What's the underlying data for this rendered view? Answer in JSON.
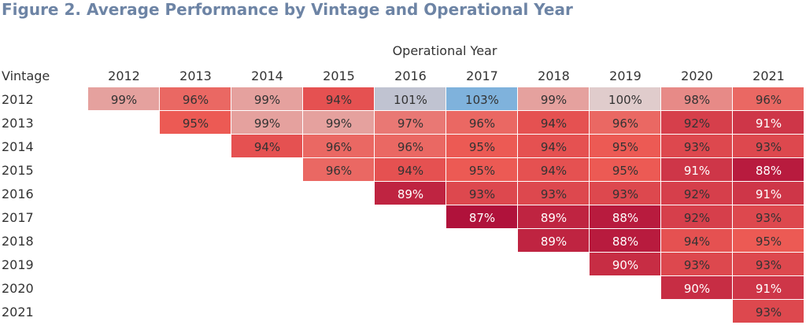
{
  "figure": {
    "title": "Figure 2. Average Performance by Vintage and Operational Year"
  },
  "chart_data": {
    "type": "heatmap",
    "title": "Figure 2. Average Performance by Vintage and Operational Year",
    "column_header": "Operational Year",
    "row_header": "Vintage",
    "x": [
      "2012",
      "2013",
      "2014",
      "2015",
      "2016",
      "2017",
      "2018",
      "2019",
      "2020",
      "2021"
    ],
    "y": [
      "2012",
      "2013",
      "2014",
      "2015",
      "2016",
      "2017",
      "2018",
      "2019",
      "2020",
      "2021"
    ],
    "unit": "%",
    "values": [
      [
        99,
        96,
        99,
        94,
        101,
        103,
        99,
        100,
        98,
        96
      ],
      [
        null,
        95,
        99,
        99,
        97,
        96,
        94,
        96,
        92,
        91
      ],
      [
        null,
        null,
        94,
        96,
        96,
        95,
        94,
        95,
        93,
        93
      ],
      [
        null,
        null,
        null,
        96,
        94,
        95,
        94,
        95,
        91,
        88
      ],
      [
        null,
        null,
        null,
        null,
        89,
        93,
        93,
        93,
        92,
        91
      ],
      [
        null,
        null,
        null,
        null,
        null,
        87,
        89,
        88,
        92,
        93
      ],
      [
        null,
        null,
        null,
        null,
        null,
        null,
        89,
        88,
        94,
        95
      ],
      [
        null,
        null,
        null,
        null,
        null,
        null,
        null,
        90,
        93,
        93
      ],
      [
        null,
        null,
        null,
        null,
        null,
        null,
        null,
        null,
        90,
        91
      ],
      [
        null,
        null,
        null,
        null,
        null,
        null,
        null,
        null,
        null,
        93
      ]
    ],
    "colors": {
      "diverging_center": "#e0cccc",
      "high": "#7fb2dc",
      "low": "#b0123b",
      "label_dark": "#333333",
      "label_light": "#ffffff"
    }
  }
}
